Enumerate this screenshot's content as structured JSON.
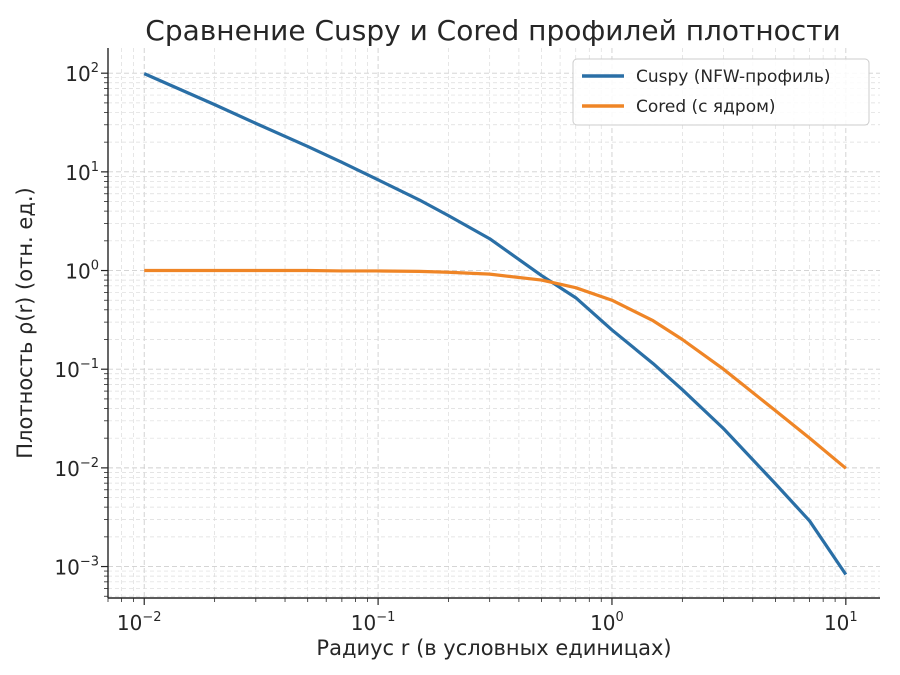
{
  "chart_data": {
    "type": "line",
    "title": "Сравнение Cuspy и Cored профилей плотности",
    "xlabel": "Радиус r (в условных единицах)",
    "ylabel": "Плотность ρ(r) (отн. ед.)",
    "xscale": "log",
    "yscale": "log",
    "xlim": [
      0.007,
      14
    ],
    "ylim": [
      0.00048,
      180
    ],
    "grid": true,
    "legend_position": "top-right",
    "x_ticks": [
      {
        "base": "10",
        "exp": "−2"
      },
      {
        "base": "10",
        "exp": "−1"
      },
      {
        "base": "10",
        "exp": "0"
      },
      {
        "base": "10",
        "exp": "1"
      }
    ],
    "y_ticks": [
      {
        "base": "10",
        "exp": "2"
      },
      {
        "base": "10",
        "exp": "1"
      },
      {
        "base": "10",
        "exp": "0"
      },
      {
        "base": "10",
        "exp": "−1"
      },
      {
        "base": "10",
        "exp": "−2"
      },
      {
        "base": "10",
        "exp": "−3"
      }
    ],
    "series": [
      {
        "name": "Cuspy (NFW-профиль)",
        "color": "#2a6fa6",
        "x": [
          0.01,
          0.02,
          0.03,
          0.05,
          0.07,
          0.1,
          0.15,
          0.2,
          0.3,
          0.5,
          0.7,
          1,
          1.5,
          2,
          3,
          5,
          7,
          10
        ],
        "y": [
          99,
          48,
          31,
          18.1,
          12.5,
          8.3,
          5.2,
          3.6,
          2.1,
          0.89,
          0.53,
          0.25,
          0.114,
          0.062,
          0.025,
          0.0069,
          0.0029,
          0.00083
        ]
      },
      {
        "name": "Cored (с ядром)",
        "color": "#ef8526",
        "x": [
          0.01,
          0.02,
          0.03,
          0.05,
          0.07,
          0.1,
          0.15,
          0.2,
          0.3,
          0.5,
          0.7,
          1,
          1.5,
          2,
          3,
          5,
          7,
          10
        ],
        "y": [
          1,
          1,
          1,
          1,
          0.99,
          0.99,
          0.98,
          0.96,
          0.92,
          0.8,
          0.67,
          0.5,
          0.31,
          0.2,
          0.1,
          0.038,
          0.02,
          0.0099
        ]
      }
    ]
  }
}
